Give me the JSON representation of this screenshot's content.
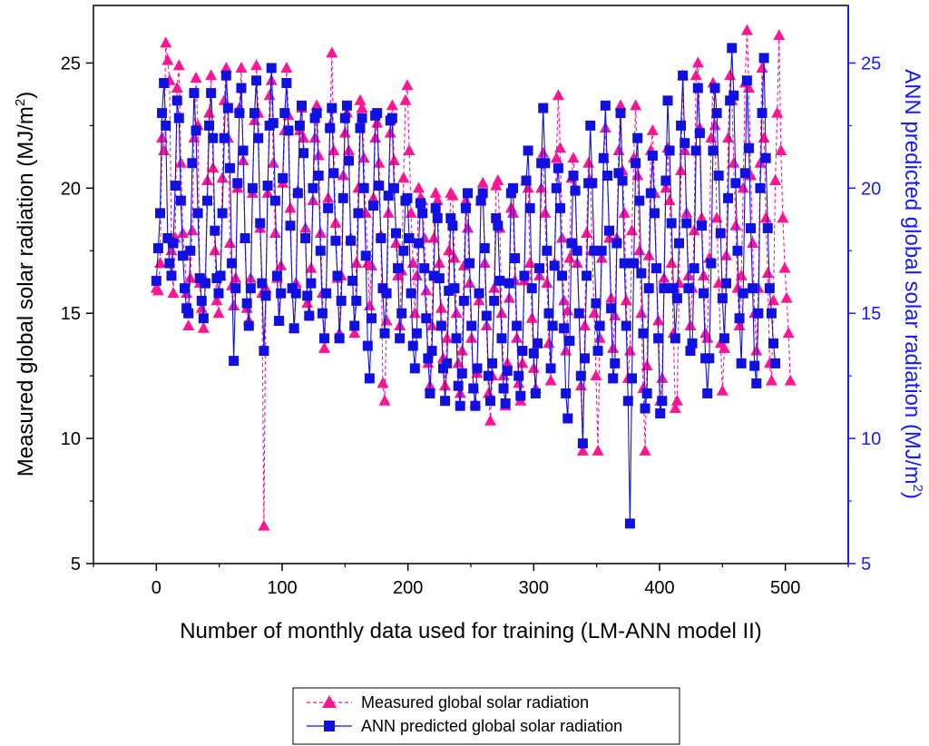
{
  "chart_data": {
    "type": "line",
    "title": "",
    "xlabel": "Number of monthly data used for training (LM-ANN model II)",
    "ylabel_left": "Measured global solar radiation (MJ/m²)",
    "ylabel_left_parts": {
      "base": "Measured global solar radiation (MJ/m",
      "sup": "2",
      "end": ")"
    },
    "ylabel_right": "ANN predicted global solar radiation (MJ/m²)",
    "ylabel_right_parts": {
      "base": "ANN predicted global solar radiation (MJ/m",
      "sup": "2",
      "end": ")"
    },
    "xlim": [
      -50,
      550
    ],
    "ylim": [
      5,
      27.3
    ],
    "xticks": [
      0,
      100,
      200,
      300,
      400,
      500
    ],
    "yticks": [
      5,
      10,
      15,
      20,
      25
    ],
    "grid": false,
    "legend_position": "bottom-center",
    "colors": {
      "measured": "#ff1493",
      "predicted": "#1010e0",
      "right_axis": "#1a1aff"
    },
    "series": [
      {
        "name": "Measured global solar radiation",
        "marker": "triangle",
        "line": "dashed",
        "x_start": 0,
        "x_step": 1.5,
        "values": [
          16.0,
          15.9,
          17.0,
          22.0,
          21.5,
          25.8,
          25.1,
          24.3,
          17.5,
          15.8,
          18.0,
          24.0,
          24.9,
          21.0,
          18.2,
          17.3,
          15.8,
          14.5,
          16.4,
          18.3,
          22.0,
          24.4,
          22.5,
          16.2,
          15.2,
          14.4,
          16.3,
          20.3,
          23.0,
          24.5,
          20.8,
          17.5,
          15.5,
          15.0,
          16.5,
          20.4,
          23.5,
          24.8,
          22.0,
          17.8,
          16.1,
          15.3,
          16.4,
          20.0,
          23.2,
          24.8,
          21.1,
          18.0,
          15.2,
          14.7,
          16.4,
          19.8,
          22.7,
          24.9,
          23.0,
          18.4,
          15.8,
          6.5,
          16.0,
          19.8,
          23.7,
          24.3,
          21.0,
          18.2,
          16.4,
          14.7,
          16.9,
          20.2,
          22.3,
          24.8,
          22.9,
          19.2,
          16.0,
          14.4,
          16.2,
          19.9,
          22.3,
          23.2,
          22.0,
          18.4,
          15.4,
          15.0,
          16.8,
          19.5,
          22.0,
          23.3,
          21.3,
          18.2,
          15.8,
          13.6,
          15.8,
          19.6,
          22.5,
          25.4,
          21.5,
          18.6,
          16.4,
          14.2,
          16.5,
          20.5,
          22.2,
          23.0,
          21.5,
          18.0,
          16.3,
          14.2,
          17.0,
          20.0,
          23.5,
          23.2,
          21.2,
          19.0,
          17.0,
          15.3,
          16.9,
          19.6,
          22.0,
          22.6,
          21.0,
          18.1,
          12.2,
          11.5,
          14.7,
          19.0,
          22.2,
          23.3,
          21.1,
          17.8,
          16.5,
          14.5,
          16.7,
          20.4,
          23.5,
          24.1,
          21.5,
          19.0,
          17.0,
          15.0,
          16.5,
          20.0,
          19.6,
          19.5,
          18.0,
          15.9,
          13.0,
          12.1,
          14.5,
          18.0,
          19.8,
          19.5,
          17.0,
          15.2,
          13.2,
          12.1,
          14.0,
          17.5,
          19.8,
          19.7,
          17.2,
          15.0,
          13.0,
          11.8,
          13.5,
          16.9,
          19.5,
          18.4,
          16.2,
          14.0,
          12.0,
          11.4,
          12.6,
          15.5,
          19.5,
          20.2,
          17.0,
          14.5,
          11.8,
          10.7,
          12.5,
          16.0,
          20.1,
          20.3,
          18.4,
          15.0,
          12.5,
          11.3,
          13.0,
          15.6,
          19.2,
          19.0,
          16.3,
          14.0,
          12.2,
          11.5,
          13.0,
          16.3,
          20.3,
          20.0,
          17.0,
          14.8,
          12.8,
          12.0,
          13.8,
          16.5,
          20.0,
          21.4,
          19.0,
          16.2,
          13.8,
          12.3,
          14.5,
          17.0,
          21.2,
          23.7,
          21.6,
          18.0,
          15.5,
          13.5,
          15.1,
          17.2,
          20.4,
          21.2,
          20.0,
          17.0,
          15.0,
          12.1,
          9.5,
          14.5,
          18.2,
          21.0,
          20.3,
          17.5,
          15.0,
          12.5,
          9.5,
          14.0,
          17.2,
          21.2,
          22.4,
          20.5,
          18.0,
          15.6,
          13.6,
          14.9,
          18.0,
          21.5,
          23.3,
          20.7,
          19.0,
          15.5,
          12.4,
          13.5,
          18.3,
          21.2,
          23.3,
          20.5,
          17.5,
          15.0,
          12.0,
          9.5,
          12.9,
          17.3,
          21.5,
          22.3,
          19.8,
          16.8,
          14.7,
          11.5,
          12.4,
          16.4,
          20.0,
          21.6,
          19.5,
          17.0,
          14.2,
          11.2,
          11.5,
          16.2,
          20.7,
          24.5,
          21.5,
          19.0,
          16.5,
          14.5,
          16.0,
          18.3,
          24.5,
          25.0,
          22.4,
          18.8,
          16.5,
          14.2,
          14.0,
          17.2,
          22.0,
          24.2,
          22.5,
          18.8,
          16.2,
          13.8,
          11.9,
          13.6,
          17.3,
          22.0,
          24.5,
          23.5,
          21.0,
          18.5,
          16.0,
          14.5,
          16.5,
          20.0,
          24.2,
          26.3,
          24.0,
          20.5,
          17.8,
          15.0,
          13.5,
          16.0,
          21.0,
          24.8,
          22.0,
          18.8,
          16.6,
          13.0,
          12.3,
          15.5,
          20.3,
          23.0,
          26.1,
          21.5,
          18.8,
          16.8,
          15.6,
          14.2,
          12.3
        ]
      },
      {
        "name": "ANN predicted global solar radiation",
        "marker": "square",
        "line": "solid",
        "x_start": 0,
        "x_step": 1.5,
        "values": [
          16.3,
          17.6,
          19.0,
          23.0,
          24.2,
          22.5,
          18.0,
          17.0,
          16.5,
          17.8,
          20.1,
          23.5,
          22.8,
          19.5,
          17.3,
          16.0,
          15.2,
          15.0,
          17.5,
          21.0,
          23.8,
          22.3,
          19.0,
          16.4,
          15.5,
          14.8,
          16.2,
          19.5,
          22.5,
          23.8,
          22.0,
          18.3,
          16.4,
          15.8,
          16.5,
          19.0,
          22.0,
          24.5,
          23.2,
          20.8,
          17.0,
          13.1,
          16.0,
          20.2,
          23.0,
          24.0,
          21.5,
          18.0,
          15.4,
          14.5,
          16.0,
          20.0,
          23.0,
          24.3,
          22.0,
          18.6,
          16.2,
          13.5,
          15.7,
          20.1,
          22.5,
          24.8,
          22.6,
          19.5,
          16.5,
          14.7,
          15.8,
          20.4,
          23.0,
          24.2,
          22.3,
          18.5,
          16.0,
          14.4,
          15.8,
          19.8,
          22.5,
          23.3,
          21.4,
          18.0,
          15.7,
          14.9,
          16.2,
          20.0,
          22.8,
          23.0,
          20.5,
          17.5,
          15.0,
          14.0,
          15.8,
          19.2,
          22.4,
          23.2,
          20.6,
          17.9,
          16.5,
          14.0,
          15.5,
          19.6,
          22.8,
          23.3,
          21.1,
          17.9,
          16.3,
          14.5,
          15.5,
          19.0,
          22.4,
          22.8,
          20.0,
          17.3,
          13.7,
          12.4,
          14.8,
          19.3,
          22.9,
          23.0,
          20.1,
          18.0,
          16.0,
          14.2,
          15.8,
          19.7,
          22.7,
          22.8,
          20.0,
          18.2,
          16.8,
          14.0,
          15.0,
          17.5,
          19.5,
          19.6,
          18.0,
          15.8,
          13.7,
          12.8,
          14.2,
          17.8,
          19.4,
          19.0,
          16.8,
          14.8,
          13.2,
          11.8,
          13.5,
          16.5,
          19.2,
          18.8,
          16.4,
          14.5,
          12.8,
          11.5,
          13.0,
          15.9,
          18.8,
          18.5,
          16.0,
          14.0,
          12.1,
          11.3,
          12.6,
          15.5,
          19.2,
          19.8,
          17.0,
          14.5,
          12.0,
          11.3,
          12.8,
          15.8,
          19.5,
          19.8,
          17.6,
          14.9,
          12.5,
          11.5,
          13.0,
          15.5,
          18.8,
          18.5,
          16.3,
          14.0,
          12.0,
          11.4,
          12.7,
          16.2,
          19.8,
          20.0,
          17.2,
          14.5,
          12.5,
          11.7,
          13.5,
          16.5,
          20.3,
          21.5,
          19.2,
          16.0,
          13.4,
          11.8,
          13.8,
          16.8,
          21.0,
          23.2,
          21.0,
          17.5,
          15.0,
          12.8,
          14.5,
          16.9,
          20.0,
          20.8,
          19.2,
          16.5,
          14.4,
          11.8,
          10.8,
          13.9,
          17.8,
          20.5,
          19.9,
          17.5,
          15.0,
          12.5,
          9.8,
          13.2,
          16.5,
          20.2,
          22.5,
          20.2,
          17.5,
          15.4,
          13.5,
          14.5,
          17.5,
          21.2,
          23.3,
          20.5,
          18.3,
          15.2,
          12.4,
          13.0,
          17.8,
          20.6,
          23.0,
          20.3,
          17.0,
          14.5,
          11.5,
          6.6,
          12.4,
          17.0,
          21.0,
          22.0,
          19.5,
          16.6,
          14.2,
          11.2,
          11.8,
          16.0,
          19.8,
          21.3,
          19.0,
          16.8,
          14.0,
          11.0,
          11.5,
          16.0,
          20.3,
          23.5,
          21.5,
          18.6,
          16.0,
          14.0,
          15.6,
          17.8,
          22.5,
          24.5,
          21.8,
          18.6,
          16.0,
          13.5,
          13.8,
          16.8,
          21.5,
          24.0,
          22.2,
          18.5,
          15.8,
          13.2,
          11.8,
          13.2,
          17.0,
          21.5,
          24.0,
          23.0,
          20.5,
          18.2,
          15.6,
          14.0,
          16.2,
          19.6,
          23.5,
          25.6,
          23.7,
          20.2,
          17.5,
          14.8,
          13.0,
          15.8,
          20.6,
          24.3,
          21.6,
          18.4,
          16.0,
          12.9,
          12.2,
          15.0,
          20.0,
          23.0,
          25.2,
          21.2,
          18.4,
          16.0,
          15.0,
          13.8,
          13.0
        ]
      }
    ]
  }
}
